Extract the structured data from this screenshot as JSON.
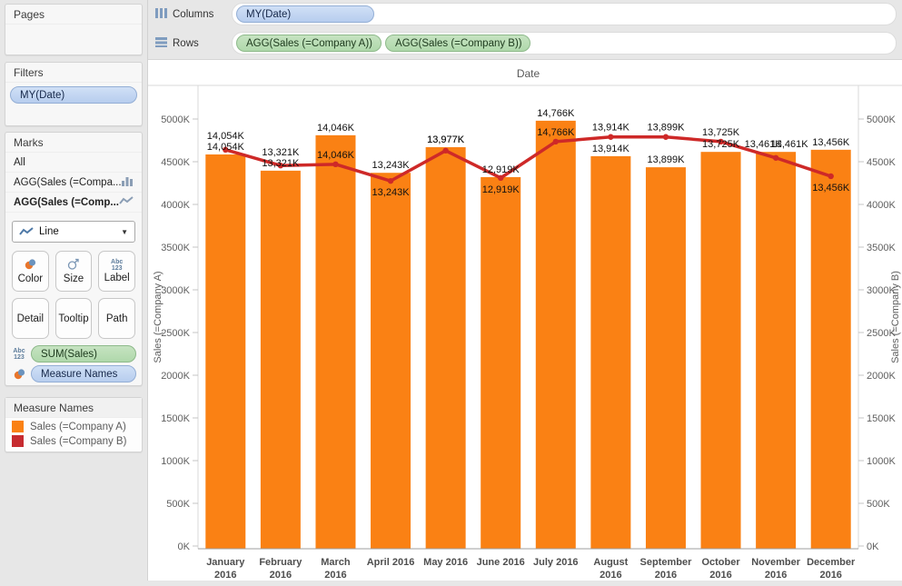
{
  "pages": {
    "title": "Pages"
  },
  "filters": {
    "title": "Filters",
    "pills": [
      "MY(Date)"
    ]
  },
  "marks": {
    "title": "Marks",
    "items": [
      {
        "label": "All",
        "icon": "none",
        "bold": false
      },
      {
        "label": "AGG(Sales (=Compa...",
        "icon": "bar-chart",
        "bold": false
      },
      {
        "label": "AGG(Sales (=Comp...",
        "icon": "line-chart",
        "bold": true
      }
    ],
    "mark_type": "Line",
    "buttons": [
      {
        "label": "Color"
      },
      {
        "label": "Size"
      },
      {
        "label": "Label"
      },
      {
        "label": "Detail"
      },
      {
        "label": "Tooltip"
      },
      {
        "label": "Path"
      }
    ],
    "shelf_pills": [
      {
        "label": "SUM(Sales)",
        "type": "green",
        "icon": "abc123"
      },
      {
        "label": "Measure Names",
        "type": "blue",
        "icon": "color"
      }
    ]
  },
  "legend": {
    "title": "Measure Names",
    "entries": [
      {
        "label": "Sales (=Company A)",
        "color": "#FA8114"
      },
      {
        "label": "Sales (=Company B)",
        "color": "#C62B30"
      }
    ]
  },
  "shelves": {
    "columns_label": "Columns",
    "rows_label": "Rows",
    "columns_pills": [
      {
        "label": "MY(Date)",
        "type": "blue"
      }
    ],
    "rows_pills": [
      {
        "label": "AGG(Sales (=Company A))",
        "type": "green"
      },
      {
        "label": "AGG(Sales (=Company B))",
        "type": "green"
      }
    ]
  },
  "colors": {
    "bar_orange": "#FA8114",
    "line_red": "#CE2928",
    "tick_text": "#5f5f5f",
    "month_text": "#4e4e4e",
    "label_text": "#111111"
  },
  "chart_data": {
    "type": "dual-axis bar+line",
    "title": "Date",
    "categories": [
      "January 2016",
      "February 2016",
      "March 2016",
      "April 2016",
      "May 2016",
      "June 2016",
      "July 2016",
      "August 2016",
      "September 2016",
      "October 2016",
      "November 2016",
      "December 2016"
    ],
    "series": [
      {
        "name": "Sales (=Company A)",
        "type": "bar",
        "axis": "left",
        "color": "#FA8114",
        "values_axis_estimate": [
          4585,
          4395,
          4810,
          4370,
          4670,
          4320,
          4980,
          4565,
          4435,
          4615,
          4615,
          4640
        ],
        "point_labels": [
          "14,054K",
          "13,321K",
          "14,046K",
          "13,243K",
          "13,977K",
          "12,919K",
          "14,766K",
          "13,914K",
          "13,899K",
          "13,725K",
          "13,461K",
          "13,456K"
        ]
      },
      {
        "name": "Sales (=Company B)",
        "type": "line",
        "axis": "right",
        "color": "#CE2928",
        "values_axis_estimate": [
          4640,
          4455,
          4470,
          4275,
          4630,
          4310,
          4735,
          4790,
          4790,
          4735,
          4545,
          4330
        ],
        "point_labels": [
          "14,054K",
          "13,321K",
          "14,046K",
          "13,243K",
          "13,977K",
          "12,919K",
          "14,766K",
          "13,914K",
          "13,899K",
          "13,725K",
          "13,461K",
          "13,456K"
        ]
      }
    ],
    "axes": {
      "left": {
        "title": "Sales (=Company A)",
        "ticks": [
          "0K",
          "500K",
          "1000K",
          "1500K",
          "2000K",
          "2500K",
          "3000K",
          "3500K",
          "4000K",
          "4500K",
          "5000K"
        ]
      },
      "right": {
        "title": "Sales (=Company B)",
        "ticks": [
          "0K",
          "500K",
          "1000K",
          "1500K",
          "2000K",
          "2500K",
          "3000K",
          "3500K",
          "4000K",
          "4500K",
          "5000K"
        ]
      }
    },
    "ylim": [
      0,
      5390
    ],
    "grid": false,
    "label_layout": [
      "above",
      "above",
      "above",
      "below",
      "overlap",
      "below",
      "above",
      "above",
      "above",
      "above",
      "side",
      "below"
    ],
    "two_line_categories": [
      true,
      true,
      true,
      false,
      false,
      false,
      false,
      true,
      true,
      true,
      true,
      true
    ]
  }
}
